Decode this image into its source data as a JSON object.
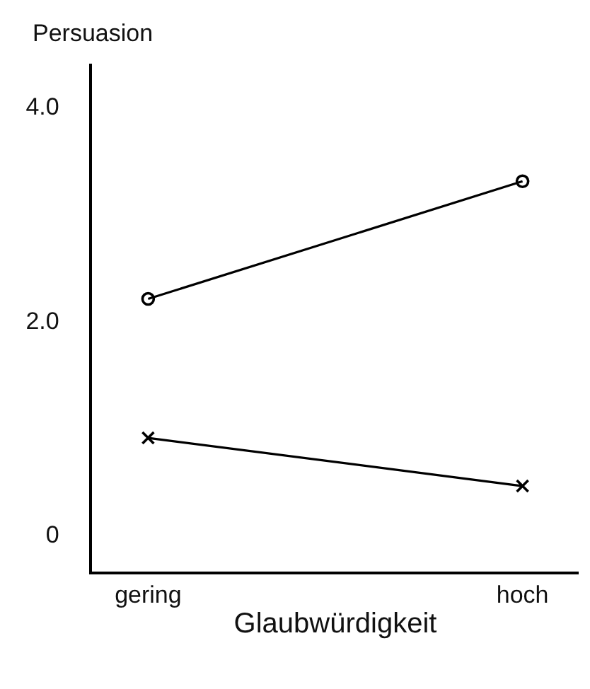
{
  "chart_data": {
    "type": "line",
    "xlabel": "Glaubwürdigkeit",
    "ylabel": "Persuasion",
    "categories": [
      "gering",
      "hoch"
    ],
    "series": [
      {
        "color": "#000000",
        "values": [
          2.2,
          3.3
        ],
        "marker": "circle"
      },
      {
        "color": "#000000",
        "values": [
          0.9,
          0.45
        ],
        "marker": "cross"
      }
    ],
    "ylim": [
      -0.35,
      4.4
    ],
    "yticks": [
      0,
      {
        "value": 2,
        "label": "2.0"
      },
      {
        "value": 4,
        "label": "4.0"
      }
    ],
    "line_style": "solid"
  }
}
